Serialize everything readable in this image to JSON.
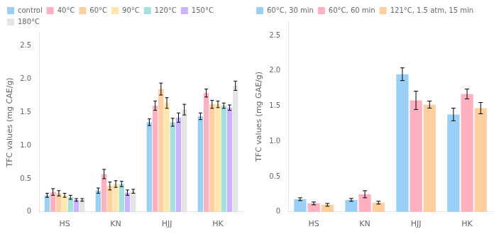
{
  "chart_data": [
    {
      "type": "bar",
      "categories": [
        "HS",
        "KN",
        "HJJ",
        "HK"
      ],
      "series": [
        {
          "name": "control",
          "values": [
            0.25,
            0.32,
            1.35,
            1.44
          ],
          "errors": [
            0.03,
            0.04,
            0.05,
            0.05
          ]
        },
        {
          "name": "40°C",
          "values": [
            0.3,
            0.57,
            1.6,
            1.79
          ],
          "errors": [
            0.05,
            0.07,
            0.07,
            0.06
          ]
        },
        {
          "name": "60°C",
          "values": [
            0.28,
            0.39,
            1.85,
            1.62
          ],
          "errors": [
            0.04,
            0.06,
            0.09,
            0.06
          ]
        },
        {
          "name": "90°C",
          "values": [
            0.25,
            0.42,
            1.64,
            1.62
          ],
          "errors": [
            0.03,
            0.05,
            0.08,
            0.05
          ]
        },
        {
          "name": "120°C",
          "values": [
            0.22,
            0.42,
            1.35,
            1.6
          ],
          "errors": [
            0.03,
            0.04,
            0.06,
            0.04
          ]
        },
        {
          "name": "150°C",
          "values": [
            0.18,
            0.29,
            1.42,
            1.57
          ],
          "errors": [
            0.02,
            0.04,
            0.07,
            0.04
          ]
        },
        {
          "name": "180°C",
          "values": [
            0.18,
            0.31,
            1.54,
            1.9
          ],
          "errors": [
            0.02,
            0.03,
            0.08,
            0.07
          ]
        }
      ],
      "ylabel": "TFC values (mg CAE/g)",
      "ylim": [
        0,
        2.7
      ],
      "yticks": [
        0,
        0.5,
        {
          "value": 1.0,
          "label": "1.0"
        },
        1.5,
        {
          "value": 2.0,
          "label": "2.0"
        },
        2.5
      ],
      "grid": false,
      "legend": "upper left"
    },
    {
      "type": "bar",
      "categories": [
        "HS",
        "KN",
        "HJJ",
        "HK"
      ],
      "series": [
        {
          "name": "60°C, 30 min",
          "values": [
            0.18,
            0.17,
            1.95,
            1.38
          ],
          "errors": [
            0.02,
            0.02,
            0.09,
            0.09
          ]
        },
        {
          "name": "60°C, 60 min",
          "values": [
            0.12,
            0.25,
            1.58,
            1.67
          ],
          "errors": [
            0.02,
            0.05,
            0.13,
            0.07
          ]
        },
        {
          "name": "121°C, 1.5 atm, 15 min",
          "values": [
            0.1,
            0.13,
            1.52,
            1.47
          ],
          "errors": [
            0.02,
            0.02,
            0.05,
            0.08
          ]
        }
      ],
      "ylabel": "TFC values (mg GAE/g)",
      "ylim": [
        0,
        2.7
      ],
      "yticks": [
        0,
        0.5,
        {
          "value": 1.0,
          "label": "1.0"
        },
        1.5,
        {
          "value": 2.0,
          "label": "2.0"
        },
        2.5
      ],
      "grid": false,
      "legend": "upper left"
    }
  ]
}
